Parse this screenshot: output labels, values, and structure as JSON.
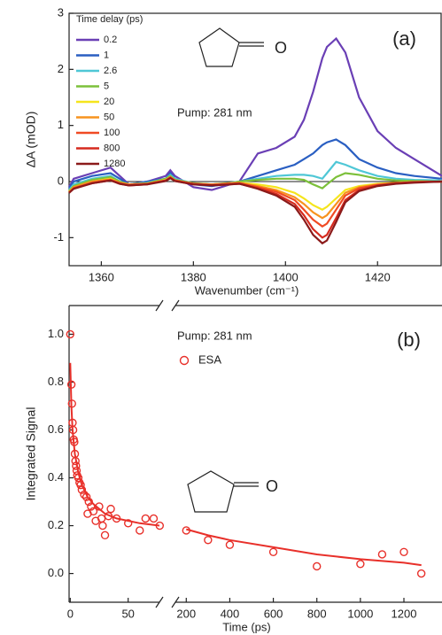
{
  "chart_data": [
    {
      "type": "line",
      "annotations": [
        "(a)",
        "Pump: 281 nm"
      ],
      "xlabel": "Wavenumber (cm⁻¹)",
      "ylabel": "ΔA (mOD)",
      "legend_title": "Time delay (ps)",
      "legend": "upper left",
      "xlim": [
        1353,
        1434
      ],
      "xticks": [
        1360,
        1380,
        1400,
        1420
      ],
      "ylim": [
        -1.5,
        3
      ],
      "yticks": [
        -1,
        0,
        1,
        2,
        3
      ],
      "zero_line": true,
      "x": [
        1353,
        1354,
        1358,
        1362,
        1364,
        1366,
        1370,
        1374,
        1375,
        1376,
        1380,
        1384,
        1388,
        1390,
        1394,
        1398,
        1402,
        1404,
        1406,
        1408,
        1409,
        1411,
        1413,
        1416,
        1420,
        1424,
        1428,
        1434
      ],
      "series": [
        {
          "name": "0.2",
          "color": "#6a3fb5",
          "values": [
            -0.1,
            0.05,
            0.15,
            0.25,
            0.1,
            -0.05,
            0,
            0.1,
            0.2,
            0.1,
            -0.1,
            -0.15,
            -0.05,
            0,
            0.5,
            0.6,
            0.8,
            1.1,
            1.6,
            2.2,
            2.4,
            2.55,
            2.3,
            1.5,
            0.9,
            0.6,
            0.4,
            0.1
          ]
        },
        {
          "name": "1",
          "color": "#2a5fc2",
          "values": [
            -0.12,
            0,
            0.1,
            0.15,
            0.05,
            -0.05,
            0,
            0.05,
            0.15,
            0.05,
            -0.05,
            -0.08,
            -0.03,
            0,
            0.1,
            0.2,
            0.3,
            0.4,
            0.5,
            0.65,
            0.7,
            0.75,
            0.65,
            0.4,
            0.25,
            0.15,
            0.1,
            0.05
          ]
        },
        {
          "name": "2.6",
          "color": "#4fc7d6",
          "values": [
            -0.15,
            -0.05,
            0.05,
            0.1,
            0,
            -0.05,
            -0.02,
            0.05,
            0.12,
            0.05,
            -0.03,
            -0.05,
            -0.02,
            0,
            0.05,
            0.1,
            0.12,
            0.12,
            0.1,
            0.05,
            0.15,
            0.35,
            0.3,
            0.2,
            0.1,
            0.05,
            0.03,
            0.02
          ]
        },
        {
          "name": "5",
          "color": "#7cc03a",
          "values": [
            -0.17,
            -0.08,
            0.03,
            0.08,
            0,
            -0.05,
            -0.03,
            0.05,
            0.1,
            0.03,
            -0.03,
            -0.05,
            -0.03,
            0,
            0.03,
            0.05,
            0.05,
            0.03,
            -0.05,
            -0.12,
            -0.05,
            0.08,
            0.15,
            0.12,
            0.05,
            0.02,
            0.01,
            0
          ]
        },
        {
          "name": "20",
          "color": "#f5e51c",
          "values": [
            -0.18,
            -0.1,
            0,
            0.05,
            -0.02,
            -0.05,
            -0.04,
            0.03,
            0.08,
            0.02,
            -0.04,
            -0.05,
            -0.03,
            -0.02,
            -0.05,
            -0.1,
            -0.2,
            -0.3,
            -0.42,
            -0.5,
            -0.45,
            -0.3,
            -0.15,
            -0.08,
            -0.04,
            -0.02,
            -0.01,
            0
          ]
        },
        {
          "name": "50",
          "color": "#f7931e",
          "values": [
            -0.19,
            -0.1,
            0,
            0.04,
            -0.02,
            -0.05,
            -0.04,
            0.02,
            0.08,
            0.02,
            -0.04,
            -0.05,
            -0.03,
            -0.02,
            -0.08,
            -0.15,
            -0.28,
            -0.4,
            -0.55,
            -0.65,
            -0.6,
            -0.4,
            -0.2,
            -0.1,
            -0.05,
            -0.03,
            -0.01,
            0
          ]
        },
        {
          "name": "100",
          "color": "#f04a23",
          "values": [
            -0.2,
            -0.12,
            -0.02,
            0.03,
            -0.03,
            -0.06,
            -0.04,
            0.02,
            0.07,
            0.02,
            -0.04,
            -0.06,
            -0.04,
            -0.03,
            -0.1,
            -0.18,
            -0.33,
            -0.5,
            -0.68,
            -0.8,
            -0.75,
            -0.5,
            -0.25,
            -0.12,
            -0.06,
            -0.03,
            -0.01,
            0
          ]
        },
        {
          "name": "800",
          "color": "#d62a1e",
          "values": [
            -0.2,
            -0.12,
            -0.03,
            0.02,
            -0.04,
            -0.07,
            -0.05,
            0.02,
            0.07,
            0.01,
            -0.05,
            -0.06,
            -0.05,
            -0.04,
            -0.12,
            -0.22,
            -0.4,
            -0.6,
            -0.85,
            -1.0,
            -0.95,
            -0.65,
            -0.33,
            -0.15,
            -0.07,
            -0.03,
            -0.01,
            0
          ]
        },
        {
          "name": "1280",
          "color": "#8b1a1a",
          "values": [
            -0.2,
            -0.13,
            -0.03,
            0.02,
            -0.04,
            -0.07,
            -0.05,
            0.01,
            0.06,
            0.01,
            -0.05,
            -0.07,
            -0.05,
            -0.04,
            -0.13,
            -0.25,
            -0.45,
            -0.68,
            -0.95,
            -1.1,
            -1.05,
            -0.72,
            -0.37,
            -0.17,
            -0.08,
            -0.04,
            -0.02,
            0
          ]
        }
      ]
    },
    {
      "type": "scatter",
      "annotations": [
        "(b)",
        "Pump: 281 nm"
      ],
      "xlabel": "Time (ps)",
      "ylabel": "Integrated Signal",
      "legend": "upper left",
      "xlim": [
        -1,
        1375
      ],
      "xbreak": [
        77,
        150
      ],
      "xticks": [
        0,
        50,
        200,
        400,
        600,
        800,
        1000,
        1200
      ],
      "ylim": [
        -0.12,
        1.12
      ],
      "yticks": [
        {
          "value": 0,
          "label": "0.0"
        },
        0.2,
        0.4,
        0.6,
        0.8,
        {
          "value": 1,
          "label": "1.0"
        }
      ],
      "series": [
        {
          "name": "ESA",
          "color": "#e8302a",
          "x": [
            0,
            1,
            1.5,
            2,
            2.5,
            3,
            3.5,
            4,
            4.5,
            5,
            5.5,
            6,
            7,
            8,
            9,
            10,
            12,
            14,
            15,
            16,
            18,
            20,
            22,
            25,
            27,
            28,
            30,
            33,
            35,
            40,
            50,
            60,
            65,
            72,
            78,
            200,
            300,
            400,
            600,
            800,
            1000,
            1100,
            1200,
            1280
          ],
          "values": [
            1.0,
            0.79,
            0.71,
            0.63,
            0.6,
            0.56,
            0.55,
            0.5,
            0.47,
            0.45,
            0.43,
            0.41,
            0.4,
            0.38,
            0.37,
            0.35,
            0.33,
            0.32,
            0.25,
            0.3,
            0.28,
            0.26,
            0.22,
            0.28,
            0.23,
            0.2,
            0.16,
            0.24,
            0.27,
            0.23,
            0.21,
            0.18,
            0.23,
            0.23,
            0.2,
            0.18,
            0.14,
            0.12,
            0.09,
            0.03,
            0.04,
            0.08,
            0.09,
            0.0
          ]
        }
      ],
      "fit": {
        "color": "#e8302a",
        "x": [
          0,
          1,
          2,
          4,
          7,
          10,
          15,
          20,
          30,
          40,
          60,
          77,
          150,
          200,
          300,
          400,
          600,
          800,
          1000,
          1200,
          1280
        ],
        "values": [
          0.88,
          0.7,
          0.6,
          0.5,
          0.42,
          0.37,
          0.32,
          0.29,
          0.25,
          0.23,
          0.21,
          0.2,
          null,
          0.185,
          0.16,
          0.14,
          0.11,
          0.08,
          0.06,
          0.045,
          0.035
        ]
      }
    }
  ]
}
